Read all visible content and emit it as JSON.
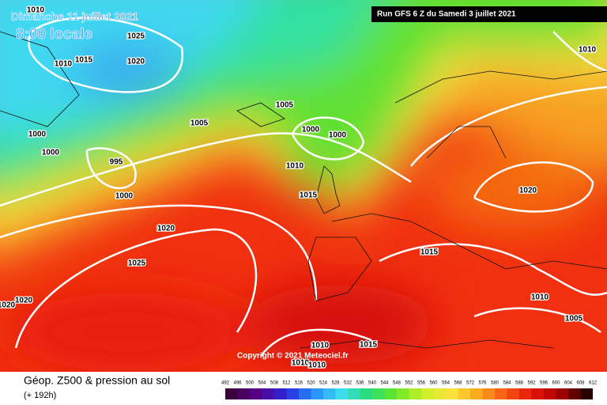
{
  "header": {
    "date": "Dimanche 11 juillet 2021",
    "time": "8:00 locale",
    "run": "Run GFS 6 Z du Samedi 3 juillet 2021"
  },
  "isobars": [
    "1010",
    "1025",
    "1015",
    "1010",
    "1020",
    "1005",
    "1005",
    "1000",
    "1000",
    "1000",
    "1000",
    "995",
    "1010",
    "1000",
    "1015",
    "1020",
    "1020",
    "1025",
    "1015",
    "1020",
    "1020",
    "1010",
    "1005",
    "1010",
    "1015",
    "1010",
    "1010",
    "1010"
  ],
  "copyright": "Copyright © 2021 Meteociel.fr",
  "footer": {
    "title": "Géop. Z500 & pression au sol",
    "lead": "(+ 192h)"
  },
  "scale": [
    492,
    496,
    500,
    504,
    508,
    512,
    516,
    520,
    524,
    528,
    532,
    536,
    540,
    544,
    548,
    552,
    556,
    560,
    564,
    568,
    572,
    576,
    580,
    584,
    588,
    592,
    596,
    600,
    604,
    608,
    612
  ]
}
